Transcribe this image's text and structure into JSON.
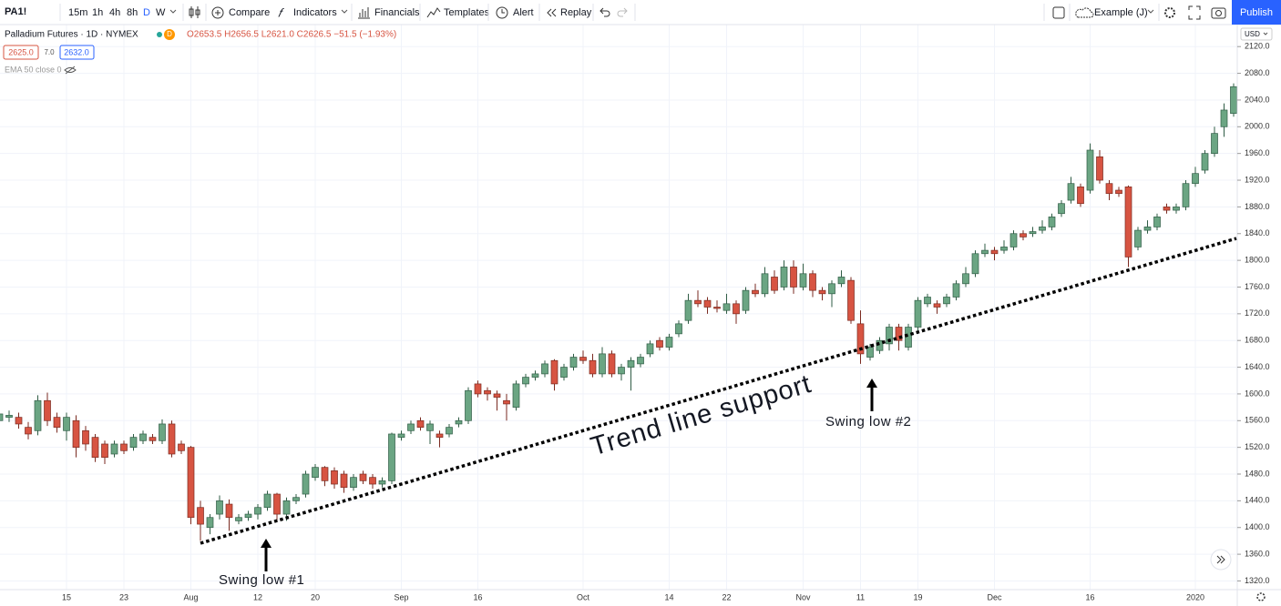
{
  "toolbar": {
    "symbol": "PA1!",
    "intervals": [
      "15m",
      "1h",
      "4h",
      "8h",
      "D",
      "W"
    ],
    "buttons": [
      "Compare",
      "Indicators",
      "Financials",
      "Templates",
      "Alert",
      "Replay"
    ],
    "layout": "Example (J)",
    "publish": "Publish"
  },
  "legend": {
    "title": "Palladium Futures · 1D · NYMEX",
    "badge": "D",
    "ohlc": "O2653.5 H2656.5 L2621.0 C2626.5 −51.5 (−1.93%)",
    "bid": "2625.0",
    "spread": "7.0",
    "ask": "2632.0",
    "indicator": "EMA 50 close 0",
    "currency": "USD"
  },
  "chart_data": {
    "type": "candlestick",
    "up_color": "#6ba583",
    "down_color": "#d75442",
    "grid": true,
    "annotations": [
      "Trend line support",
      "Swing low #1",
      "Swing low #2"
    ],
    "categories": [
      null,
      null,
      null,
      null,
      null,
      null,
      null,
      "15",
      null,
      null,
      null,
      null,
      null,
      "23",
      null,
      null,
      null,
      null,
      null,
      null,
      "Aug",
      null,
      null,
      null,
      null,
      null,
      null,
      "12",
      null,
      null,
      null,
      null,
      null,
      "20",
      null,
      null,
      null,
      null,
      null,
      null,
      null,
      null,
      "Sep",
      null,
      null,
      null,
      null,
      null,
      null,
      null,
      "16",
      null,
      null,
      null,
      null,
      null,
      null,
      null,
      null,
      null,
      null,
      "Oct",
      null,
      null,
      null,
      null,
      null,
      null,
      null,
      null,
      "14",
      null,
      null,
      null,
      null,
      null,
      "22",
      null,
      null,
      null,
      null,
      null,
      null,
      null,
      "Nov",
      null,
      null,
      null,
      null,
      null,
      "11",
      null,
      null,
      null,
      null,
      null,
      "19",
      null,
      null,
      null,
      null,
      null,
      null,
      null,
      "Dec",
      null,
      null,
      null,
      null,
      null,
      null,
      null,
      null,
      null,
      "16",
      null,
      null,
      null,
      null,
      null,
      null,
      null,
      null,
      null,
      null,
      "2020",
      null,
      null,
      null,
      null
    ],
    "open": [
      1560,
      1565,
      1565,
      1550,
      1545,
      1590,
      1565,
      1545,
      1560,
      1545,
      1535,
      1525,
      1510,
      1525,
      1520,
      1530,
      1535,
      1530,
      1555,
      1525,
      1520,
      1430,
      1400,
      1420,
      1435,
      1410,
      1415,
      1420,
      1430,
      1450,
      1420,
      1440,
      1450,
      1475,
      1490,
      1485,
      1480,
      1460,
      1480,
      1475,
      1465,
      1470,
      1535,
      1545,
      1560,
      1545,
      1540,
      1540,
      1555,
      1560,
      1615,
      1605,
      1600,
      1590,
      1580,
      1615,
      1625,
      1630,
      1650,
      1625,
      1640,
      1655,
      1650,
      1630,
      1660,
      1630,
      1640,
      1645,
      1660,
      1680,
      1670,
      1690,
      1710,
      1740,
      1740,
      1730,
      1725,
      1735,
      1725,
      1755,
      1750,
      1775,
      1760,
      1790,
      1760,
      1780,
      1755,
      1750,
      1765,
      1770,
      1705,
      1655,
      1665,
      1675,
      1700,
      1670,
      1700,
      1735,
      1735,
      1735,
      1745,
      1765,
      1780,
      1810,
      1815,
      1815,
      1820,
      1840,
      1840,
      1845,
      1850,
      1870,
      1890,
      1910,
      1905,
      1955,
      1915,
      1905,
      1910,
      1820,
      1845,
      1850,
      1880,
      1875,
      1880,
      1915,
      1935,
      1960,
      2000,
      2020
    ],
    "high": [
      1578,
      1575,
      1572,
      1558,
      1598,
      1602,
      1572,
      1572,
      1568,
      1552,
      1540,
      1530,
      1530,
      1530,
      1540,
      1545,
      1540,
      1562,
      1560,
      1530,
      1522,
      1440,
      1420,
      1448,
      1442,
      1420,
      1425,
      1435,
      1455,
      1452,
      1445,
      1450,
      1485,
      1495,
      1492,
      1490,
      1485,
      1480,
      1485,
      1480,
      1475,
      1542,
      1545,
      1560,
      1565,
      1560,
      1545,
      1555,
      1565,
      1610,
      1620,
      1610,
      1605,
      1600,
      1620,
      1630,
      1635,
      1650,
      1652,
      1645,
      1660,
      1665,
      1660,
      1670,
      1665,
      1645,
      1655,
      1660,
      1680,
      1685,
      1690,
      1710,
      1750,
      1755,
      1745,
      1740,
      1750,
      1740,
      1760,
      1765,
      1790,
      1785,
      1800,
      1800,
      1795,
      1785,
      1760,
      1770,
      1785,
      1775,
      1725,
      1675,
      1685,
      1705,
      1705,
      1705,
      1745,
      1750,
      1740,
      1750,
      1770,
      1790,
      1815,
      1825,
      1820,
      1830,
      1845,
      1845,
      1850,
      1860,
      1870,
      1890,
      1925,
      1915,
      1975,
      1965,
      1920,
      1910,
      1912,
      1850,
      1860,
      1870,
      1885,
      1885,
      1920,
      1940,
      1965,
      2000,
      2035,
      2065
    ],
    "low": [
      1552,
      1558,
      1548,
      1532,
      1538,
      1552,
      1542,
      1530,
      1505,
      1515,
      1498,
      1495,
      1505,
      1510,
      1515,
      1525,
      1525,
      1525,
      1505,
      1510,
      1405,
      1380,
      1390,
      1412,
      1395,
      1405,
      1410,
      1412,
      1425,
      1410,
      1410,
      1435,
      1445,
      1470,
      1462,
      1458,
      1452,
      1455,
      1465,
      1458,
      1460,
      1465,
      1530,
      1540,
      1545,
      1525,
      1520,
      1535,
      1550,
      1555,
      1595,
      1590,
      1575,
      1560,
      1575,
      1610,
      1620,
      1625,
      1605,
      1620,
      1635,
      1645,
      1625,
      1625,
      1625,
      1620,
      1605,
      1640,
      1655,
      1665,
      1665,
      1685,
      1705,
      1730,
      1720,
      1722,
      1720,
      1705,
      1720,
      1745,
      1745,
      1750,
      1755,
      1750,
      1755,
      1745,
      1740,
      1730,
      1760,
      1705,
      1645,
      1650,
      1660,
      1665,
      1665,
      1665,
      1695,
      1730,
      1720,
      1730,
      1740,
      1760,
      1775,
      1805,
      1800,
      1810,
      1815,
      1830,
      1835,
      1840,
      1845,
      1865,
      1885,
      1880,
      1900,
      1915,
      1890,
      1895,
      1790,
      1815,
      1840,
      1845,
      1870,
      1870,
      1875,
      1910,
      1930,
      1955,
      1985,
      2015
    ],
    "close": [
      1570,
      1568,
      1555,
      1540,
      1590,
      1560,
      1550,
      1565,
      1520,
      1525,
      1505,
      1505,
      1525,
      1515,
      1535,
      1540,
      1530,
      1555,
      1510,
      1515,
      1415,
      1405,
      1415,
      1440,
      1415,
      1415,
      1420,
      1430,
      1450,
      1420,
      1440,
      1445,
      1480,
      1490,
      1470,
      1465,
      1460,
      1475,
      1470,
      1465,
      1470,
      1540,
      1540,
      1555,
      1550,
      1555,
      1535,
      1550,
      1560,
      1605,
      1600,
      1600,
      1595,
      1585,
      1615,
      1625,
      1630,
      1645,
      1615,
      1640,
      1655,
      1650,
      1630,
      1660,
      1630,
      1640,
      1650,
      1655,
      1675,
      1670,
      1685,
      1705,
      1740,
      1735,
      1730,
      1728,
      1735,
      1720,
      1755,
      1750,
      1780,
      1755,
      1790,
      1760,
      1780,
      1755,
      1750,
      1765,
      1775,
      1710,
      1660,
      1670,
      1680,
      1700,
      1680,
      1700,
      1740,
      1745,
      1730,
      1745,
      1765,
      1780,
      1810,
      1815,
      1810,
      1820,
      1840,
      1835,
      1843,
      1850,
      1865,
      1885,
      1915,
      1885,
      1965,
      1920,
      1900,
      1900,
      1805,
      1845,
      1850,
      1865,
      1875,
      1880,
      1915,
      1930,
      1960,
      1990,
      2025,
      2060
    ],
    "ylim": [
      1307,
      2153
    ],
    "yticks": [
      {
        "value": 1320,
        "label": "1320.0"
      },
      {
        "value": 1360,
        "label": "1360.0"
      },
      {
        "value": 1400,
        "label": "1400.0"
      },
      {
        "value": 1440,
        "label": "1440.0"
      },
      {
        "value": 1480,
        "label": "1480.0"
      },
      {
        "value": 1520,
        "label": "1520.0"
      },
      {
        "value": 1560,
        "label": "1560.0"
      },
      {
        "value": 1600,
        "label": "1600.0"
      },
      {
        "value": 1640,
        "label": "1640.0"
      },
      {
        "value": 1680,
        "label": "1680.0"
      },
      {
        "value": 1720,
        "label": "1720.0"
      },
      {
        "value": 1760,
        "label": "1760.0"
      },
      {
        "value": 1800,
        "label": "1800.0"
      },
      {
        "value": 1840,
        "label": "1840.0"
      },
      {
        "value": 1880,
        "label": "1880.0"
      },
      {
        "value": 1920,
        "label": "1920.0"
      },
      {
        "value": 1960,
        "label": "1960.0"
      },
      {
        "value": 2000,
        "label": "2000.0"
      },
      {
        "value": 2040,
        "label": "2040.0"
      },
      {
        "value": 2080,
        "label": "2080.0"
      },
      {
        "value": 2120,
        "label": "2120.0"
      }
    ]
  }
}
